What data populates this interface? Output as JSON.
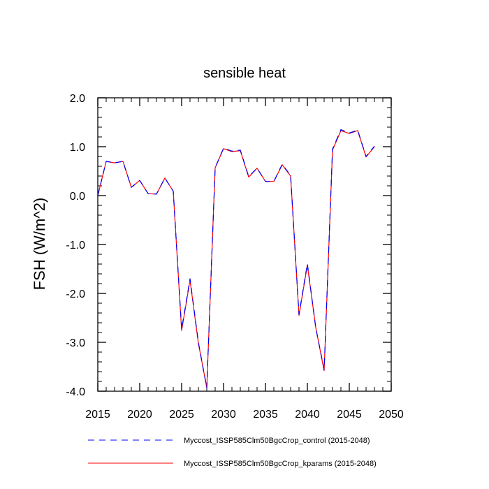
{
  "chart_data": {
    "type": "line",
    "title": "sensible heat",
    "xlabel": "",
    "ylabel": "FSH  (W/m^2)",
    "xlim": [
      2015,
      2050
    ],
    "ylim": [
      -4.0,
      2.0
    ],
    "x_ticks": [
      2015,
      2020,
      2025,
      2030,
      2035,
      2040,
      2045,
      2050
    ],
    "y_ticks": [
      2.0,
      1.0,
      0.0,
      -1.0,
      -2.0,
      -3.0,
      -4.0
    ],
    "x_tick_labels": [
      "2015",
      "2020",
      "2025",
      "2030",
      "2035",
      "2040",
      "2045",
      "2050"
    ],
    "y_tick_labels": [
      "2.0",
      "1.0",
      "0.0",
      "-1.0",
      "-2.0",
      "-3.0",
      "-4.0"
    ],
    "x": [
      2015,
      2016,
      2017,
      2018,
      2019,
      2020,
      2021,
      2022,
      2023,
      2024,
      2025,
      2026,
      2027,
      2028,
      2029,
      2030,
      2031,
      2032,
      2033,
      2034,
      2035,
      2036,
      2037,
      2038,
      2039,
      2040,
      2041,
      2042,
      2043,
      2044,
      2045,
      2046,
      2047,
      2048
    ],
    "series": [
      {
        "name": "Myccost_ISSP585Clm50BgcCrop_control (2015-2048)",
        "color": "#0000ff",
        "dash": "dashed",
        "values": [
          0.0,
          0.7,
          0.67,
          0.7,
          0.17,
          0.31,
          0.04,
          0.03,
          0.36,
          0.09,
          -2.73,
          -1.7,
          -3.0,
          -3.93,
          0.57,
          0.97,
          0.91,
          0.93,
          0.39,
          0.56,
          0.29,
          0.29,
          0.64,
          0.41,
          -2.43,
          -1.39,
          -2.7,
          -3.56,
          0.95,
          1.35,
          1.28,
          1.34,
          0.8,
          1.01
        ]
      },
      {
        "name": "Myccost_ISSP585Clm50BgcCrop_kparams (2015-2048)",
        "color": "#ff0000",
        "dash": "solid",
        "values": [
          0.0,
          0.7,
          0.67,
          0.7,
          0.17,
          0.31,
          0.04,
          0.03,
          0.36,
          0.09,
          -2.76,
          -1.73,
          -3.02,
          -3.93,
          0.57,
          0.96,
          0.9,
          0.92,
          0.38,
          0.56,
          0.29,
          0.29,
          0.63,
          0.4,
          -2.45,
          -1.42,
          -2.7,
          -3.58,
          0.93,
          1.33,
          1.27,
          1.33,
          0.79,
          1.0
        ]
      }
    ],
    "grid": false,
    "legend_position": "bottom"
  }
}
